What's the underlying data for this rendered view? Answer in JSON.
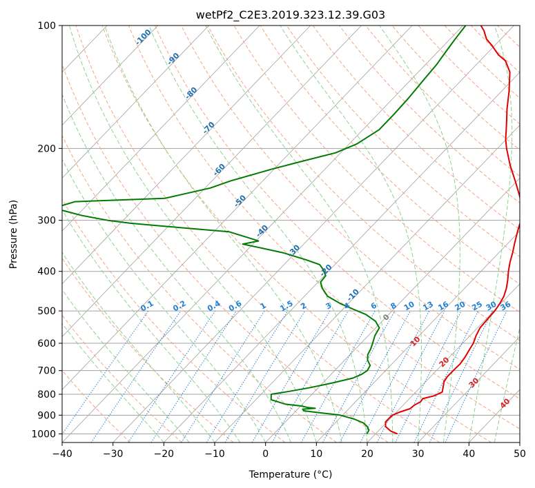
{
  "chart_data": {
    "type": "line",
    "title": "wetPf2_C2E3.2019.323.12.39.G03",
    "xlabel": "Temperature (°C)",
    "ylabel": "Pressure (hPa)",
    "xlim": [
      -40,
      50
    ],
    "ylim": [
      1050,
      100
    ],
    "y_scale": "log",
    "skew": true,
    "x_ticks": [
      "−40",
      "−30",
      "−20",
      "−10",
      "0",
      "10",
      "20",
      "30",
      "40",
      "50"
    ],
    "x_tick_values": [
      -40,
      -30,
      -20,
      -10,
      0,
      10,
      20,
      30,
      40,
      50
    ],
    "y_ticks": [
      "100",
      "200",
      "300",
      "400",
      "500",
      "600",
      "700",
      "800",
      "900",
      "1000"
    ],
    "y_tick_values": [
      100,
      200,
      300,
      400,
      500,
      600,
      700,
      800,
      900,
      1000
    ],
    "grid": true,
    "series": [
      {
        "role": "temperature",
        "color": "#e00000",
        "points": [
          [
            1000,
            24.3
          ],
          [
            985,
            22.5
          ],
          [
            960,
            20.6
          ],
          [
            935,
            19.7
          ],
          [
            915,
            19.7
          ],
          [
            900,
            19.8
          ],
          [
            885,
            20.6
          ],
          [
            868,
            22.0
          ],
          [
            850,
            22.2
          ],
          [
            835,
            22.8
          ],
          [
            820,
            22.6
          ],
          [
            807,
            24.3
          ],
          [
            790,
            25.2
          ],
          [
            770,
            24.5
          ],
          [
            745,
            23.6
          ],
          [
            725,
            23.3
          ],
          [
            700,
            23.3
          ],
          [
            675,
            23.4
          ],
          [
            650,
            23.1
          ],
          [
            625,
            22.6
          ],
          [
            600,
            22.1
          ],
          [
            575,
            21.2
          ],
          [
            550,
            20.5
          ],
          [
            520,
            20.3
          ],
          [
            500,
            20.2
          ],
          [
            480,
            19.8
          ],
          [
            460,
            19.2
          ],
          [
            440,
            18.2
          ],
          [
            420,
            16.9
          ],
          [
            400,
            15.4
          ],
          [
            380,
            14.0
          ],
          [
            360,
            12.7
          ],
          [
            340,
            11.2
          ],
          [
            320,
            9.7
          ],
          [
            300,
            8.2
          ],
          [
            280,
            6.2
          ],
          [
            260,
            3.1
          ],
          [
            240,
            -0.4
          ],
          [
            220,
            -4.3
          ],
          [
            200,
            -8.2
          ],
          [
            190,
            -10.1
          ],
          [
            175,
            -12.7
          ],
          [
            160,
            -15.6
          ],
          [
            145,
            -18.5
          ],
          [
            130,
            -22.0
          ],
          [
            122,
            -25.0
          ],
          [
            118,
            -27.5
          ],
          [
            112,
            -30.5
          ],
          [
            108,
            -32.8
          ],
          [
            103,
            -34.9
          ],
          [
            100,
            -36.5
          ]
        ]
      },
      {
        "role": "dewpoint",
        "color": "#007a00",
        "points": [
          [
            1000,
            18.3
          ],
          [
            980,
            18.0
          ],
          [
            960,
            17.0
          ],
          [
            940,
            15.5
          ],
          [
            920,
            13.0
          ],
          [
            900,
            9.5
          ],
          [
            885,
            4.0
          ],
          [
            878,
            1.5
          ],
          [
            870,
            1.0
          ],
          [
            866,
            3.3
          ],
          [
            862,
            1.7
          ],
          [
            855,
            0.2
          ],
          [
            846,
            -3.3
          ],
          [
            825,
            -7.0
          ],
          [
            810,
            -7.6
          ],
          [
            800,
            -8.0
          ],
          [
            787,
            -5.0
          ],
          [
            770,
            -1.5
          ],
          [
            750,
            2.0
          ],
          [
            730,
            5.0
          ],
          [
            715,
            6.0
          ],
          [
            700,
            6.4
          ],
          [
            680,
            6.0
          ],
          [
            660,
            4.5
          ],
          [
            640,
            3.5
          ],
          [
            620,
            3.0
          ],
          [
            600,
            2.3
          ],
          [
            575,
            1.3
          ],
          [
            550,
            0.7
          ],
          [
            530,
            -1.3
          ],
          [
            510,
            -4.5
          ],
          [
            495,
            -8.0
          ],
          [
            480,
            -11.5
          ],
          [
            460,
            -15.5
          ],
          [
            440,
            -18.0
          ],
          [
            425,
            -19.5
          ],
          [
            410,
            -19.7
          ],
          [
            395,
            -21.5
          ],
          [
            385,
            -23.0
          ],
          [
            375,
            -26.5
          ],
          [
            360,
            -32.5
          ],
          [
            350,
            -38.0
          ],
          [
            343,
            -42.0
          ],
          [
            337,
            -39.5
          ],
          [
            330,
            -42.5
          ],
          [
            320,
            -47.0
          ],
          [
            315,
            -54.0
          ],
          [
            310,
            -61.0
          ],
          [
            305,
            -68.0
          ],
          [
            300,
            -73.0
          ],
          [
            292,
            -79.0
          ],
          [
            285,
            -83.0
          ],
          [
            280,
            -86.0
          ],
          [
            270,
            -83.0
          ],
          [
            265,
            -66.0
          ],
          [
            250,
            -59.0
          ],
          [
            240,
            -56.3
          ],
          [
            225,
            -50.5
          ],
          [
            215,
            -46.0
          ],
          [
            205,
            -41.0
          ],
          [
            195,
            -38.5
          ],
          [
            180,
            -36.8
          ],
          [
            165,
            -36.8
          ],
          [
            150,
            -37.0
          ],
          [
            135,
            -37.5
          ],
          [
            125,
            -37.8
          ],
          [
            115,
            -38.5
          ],
          [
            108,
            -39.0
          ],
          [
            100,
            -39.5
          ]
        ]
      }
    ],
    "mixing_ratio_labels": [
      "0.1",
      "0.2",
      "0.4",
      "0.6",
      "1",
      "1.5",
      "2",
      "3",
      "4",
      "6",
      "8",
      "10",
      "13",
      "16",
      "20",
      "25",
      "30",
      "36"
    ],
    "mixing_ratio_values": [
      0.1,
      0.2,
      0.4,
      0.6,
      1,
      1.5,
      2,
      3,
      4,
      6,
      8,
      10,
      13,
      16,
      20,
      25,
      30,
      36
    ],
    "dry_adiabat_labels": [
      "-100",
      "-90",
      "-80",
      "-70",
      "-60",
      "-50",
      "-40",
      "-30",
      "-20",
      "-10"
    ],
    "dry_adiabat_values": [
      -100,
      -90,
      -80,
      -70,
      -60,
      -50,
      -40,
      -30,
      -20,
      -10
    ],
    "moist_adiabat_labels": [
      "0",
      "10",
      "20",
      "30",
      "40"
    ],
    "moist_adiabat_values": [
      0,
      10,
      20,
      30,
      40
    ],
    "colors": {
      "isotherm": "#a0a0a0",
      "isobar": "#a0a0a0",
      "dry_adiabat": "#f4a582",
      "moist_adiabat": "#8fd18f",
      "mixing_ratio": "#1f7fd6",
      "isotherm_label": "#1f6fb0",
      "moist_label": "#d62728",
      "zero_label": "#7f7f7f",
      "hyperbola": "#d9c4a0"
    }
  }
}
